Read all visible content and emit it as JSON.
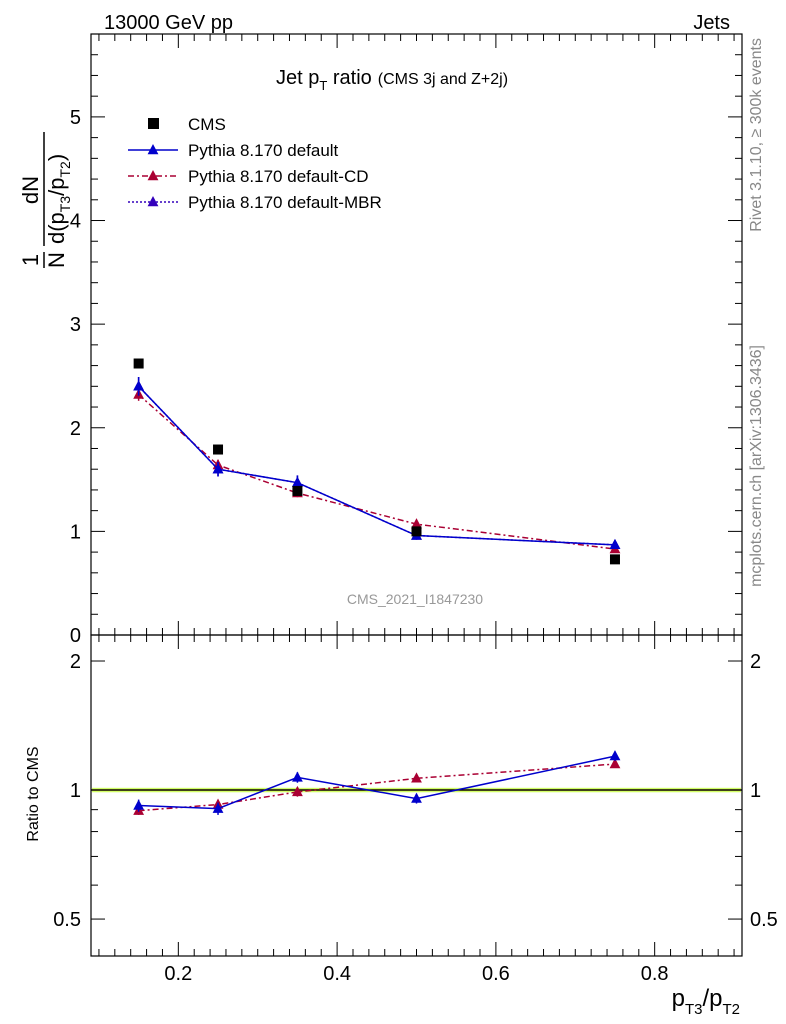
{
  "header": {
    "left": "13000 GeV pp",
    "right": "Jets"
  },
  "side_text": {
    "rivet": "Rivet 3.1.10, ≥ 300k events",
    "mcplots": "mcplots.cern.ch [arXiv:1306.3436]"
  },
  "watermark": "CMS_2021_I1847230",
  "colors": {
    "data": "#000000",
    "default": "#0000cc",
    "cd": "#aa0033",
    "mbr": "#3300bb",
    "band_inner": "#ffff66",
    "band_outer": "#ccff66"
  },
  "chart_data": [
    {
      "type": "scatter",
      "title": "Jet p_T ratio",
      "title_sub": "(CMS 3j and Z+2j)",
      "ylabel": "1/N dN/d(p_T3/p_T2)",
      "ylim": [
        0,
        5.8
      ],
      "y_ticks": [
        0,
        1,
        2,
        3,
        4,
        5
      ],
      "xlim": [
        0.09,
        0.91
      ],
      "grid": false,
      "legend_position": "top-left",
      "x": [
        0.15,
        0.25,
        0.35,
        0.5,
        0.75
      ],
      "series": [
        {
          "name": "CMS",
          "style": "markers",
          "values": [
            2.62,
            1.79,
            1.39,
            1.0,
            0.73
          ]
        },
        {
          "name": "Pythia 8.170 default",
          "style": "solid",
          "values": [
            2.4,
            1.6,
            1.47,
            0.96,
            0.87
          ],
          "errors": [
            0.09,
            0.07,
            0.07,
            0.04,
            0.03
          ]
        },
        {
          "name": "Pythia 8.170 default-CD",
          "style": "dashdot",
          "values": [
            2.32,
            1.64,
            1.37,
            1.07,
            0.83
          ],
          "errors": [
            0.06,
            0.05,
            0.04,
            0.03,
            0.02
          ]
        },
        {
          "name": "Pythia 8.170 default-MBR",
          "style": "dotted",
          "values": [
            2.4,
            1.6,
            1.47,
            0.96,
            0.87
          ],
          "errors": [
            0.09,
            0.07,
            0.07,
            0.04,
            0.03
          ]
        }
      ]
    },
    {
      "type": "scatter",
      "ylabel": "Ratio to CMS",
      "xlabel": "p_T3/p_T2",
      "ylim": [
        0.41,
        2.3
      ],
      "y_scale": "log",
      "y_ticks": [
        0.5,
        1,
        2
      ],
      "xlim": [
        0.09,
        0.91
      ],
      "x_ticks": [
        0.2,
        0.4,
        0.6,
        0.8
      ],
      "x": [
        0.15,
        0.25,
        0.35,
        0.5,
        0.75
      ],
      "series": [
        {
          "name": "Pythia 8.170 default",
          "values": [
            0.92,
            0.905,
            1.07,
            0.955,
            1.2
          ],
          "errors": [
            0.03,
            0.03,
            0.03,
            0.025,
            0.03
          ]
        },
        {
          "name": "Pythia 8.170 default-CD",
          "values": [
            0.895,
            0.925,
            0.99,
            1.065,
            1.15
          ],
          "errors": [
            0.02,
            0.02,
            0.025,
            0.02,
            0.02
          ]
        }
      ]
    }
  ]
}
